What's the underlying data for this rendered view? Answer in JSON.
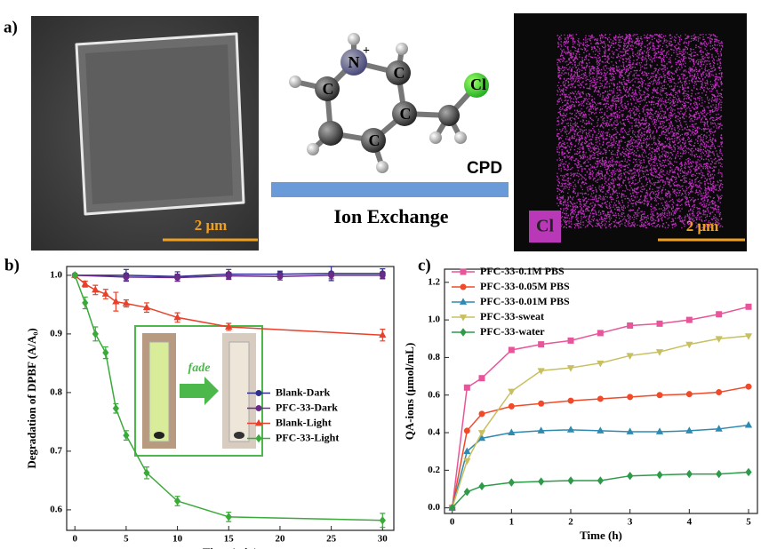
{
  "panel_a": {
    "label": "a)",
    "sem_scale": "2 μm",
    "atoms": [
      "N",
      "C",
      "C",
      "C",
      "C",
      "Cl"
    ],
    "charge": "+",
    "reagent": "CPD",
    "process": "Ion Exchange",
    "eds_element": "Cl",
    "eds_scale": "2 μm"
  },
  "chart_data": [
    {
      "type": "line",
      "panel_label": "b)",
      "xlabel": "Time (min)",
      "ylabel": "Degradation of DPBF (A/A₀)",
      "annotation": "fade",
      "xlim": [
        -0.8,
        31.1
      ],
      "xticks": [
        0,
        5,
        10,
        15,
        20,
        25,
        30
      ],
      "ylim": [
        0.565,
        1.015
      ],
      "yticks": [
        0.6,
        0.7,
        0.8,
        0.9,
        {
          "value": 1,
          "label": "1.0"
        }
      ],
      "legend": "center right",
      "series": [
        {
          "name": "Blank-Dark",
          "color": "#2e2e8a",
          "marker": "circle",
          "x": [
            0,
            5,
            10,
            15,
            20,
            25,
            30
          ],
          "values": [
            1.0,
            1.0,
            0.998,
            1.002,
            1.002,
            1.003,
            1.003
          ],
          "errors": [
            0.002,
            0.01,
            0.008,
            0.008,
            0.005,
            0.012,
            0.008
          ]
        },
        {
          "name": "PFC-33-Dark",
          "color": "#6a2a8a",
          "marker": "circle",
          "x": [
            0,
            5,
            10,
            15,
            20,
            25,
            30
          ],
          "values": [
            1.0,
            0.997,
            0.996,
            0.999,
            0.998,
            1.0,
            1.0
          ],
          "errors": [
            0.002,
            0.006,
            0.006,
            0.006,
            0.006,
            0.006,
            0.006
          ]
        },
        {
          "name": "Blank-Light",
          "color": "#e8402a",
          "marker": "triangle",
          "x": [
            0,
            1,
            2,
            3,
            4,
            5,
            7,
            10,
            15,
            30
          ],
          "values": [
            1.0,
            0.985,
            0.975,
            0.968,
            0.955,
            0.952,
            0.945,
            0.928,
            0.912,
            0.898
          ],
          "errors": [
            0.002,
            0.005,
            0.008,
            0.008,
            0.016,
            0.006,
            0.008,
            0.008,
            0.006,
            0.01
          ]
        },
        {
          "name": "PFC-33-Light",
          "color": "#3aaa3a",
          "marker": "diamond",
          "x": [
            0,
            1,
            2,
            3,
            4,
            5,
            7,
            10,
            15,
            30
          ],
          "values": [
            1.0,
            0.953,
            0.9,
            0.868,
            0.773,
            0.727,
            0.663,
            0.615,
            0.588,
            0.582
          ],
          "errors": [
            0.002,
            0.01,
            0.012,
            0.01,
            0.008,
            0.008,
            0.01,
            0.008,
            0.008,
            0.012
          ]
        }
      ]
    },
    {
      "type": "line",
      "panel_label": "c)",
      "xlabel": "Time (h)",
      "ylabel": "QA-ions (μmol/mL)",
      "x": [
        0,
        0.25,
        0.5,
        1,
        1.5,
        2,
        2.5,
        3,
        3.5,
        4,
        4.5,
        5
      ],
      "xlim": [
        -0.13,
        5.15
      ],
      "xticks": [
        0,
        1,
        2,
        3,
        4,
        5
      ],
      "ylim": [
        -0.03,
        1.27
      ],
      "yticks": [
        {
          "value": 0,
          "label": "0.0"
        },
        0.2,
        0.4,
        0.6,
        0.8,
        {
          "value": 1,
          "label": "1.0"
        },
        1.2
      ],
      "legend": "upper left",
      "series": [
        {
          "name": "PFC-33-0.1M PBS",
          "color": "#e8559a",
          "marker": "square",
          "values": [
            0,
            0.64,
            0.69,
            0.84,
            0.87,
            0.89,
            0.93,
            0.97,
            0.98,
            1.0,
            1.03,
            1.07
          ]
        },
        {
          "name": "PFC-33-0.05M PBS",
          "color": "#f04a2a",
          "marker": "circle",
          "values": [
            0,
            0.41,
            0.5,
            0.54,
            0.555,
            0.57,
            0.58,
            0.59,
            0.6,
            0.605,
            0.615,
            0.645
          ]
        },
        {
          "name": "PFC-33-0.01M PBS",
          "color": "#2e8ab0",
          "marker": "triangle",
          "values": [
            0,
            0.3,
            0.37,
            0.4,
            0.41,
            0.415,
            0.41,
            0.405,
            0.405,
            0.41,
            0.42,
            0.44
          ]
        },
        {
          "name": "PFC-33-sweat",
          "color": "#c8c060",
          "marker": "triangle-down",
          "values": [
            0,
            0.25,
            0.4,
            0.62,
            0.73,
            0.745,
            0.77,
            0.81,
            0.83,
            0.87,
            0.9,
            0.915
          ]
        },
        {
          "name": "PFC-33-water",
          "color": "#2e9a4a",
          "marker": "diamond",
          "values": [
            0,
            0.085,
            0.115,
            0.135,
            0.14,
            0.145,
            0.145,
            0.17,
            0.175,
            0.18,
            0.18,
            0.19
          ]
        }
      ]
    }
  ]
}
